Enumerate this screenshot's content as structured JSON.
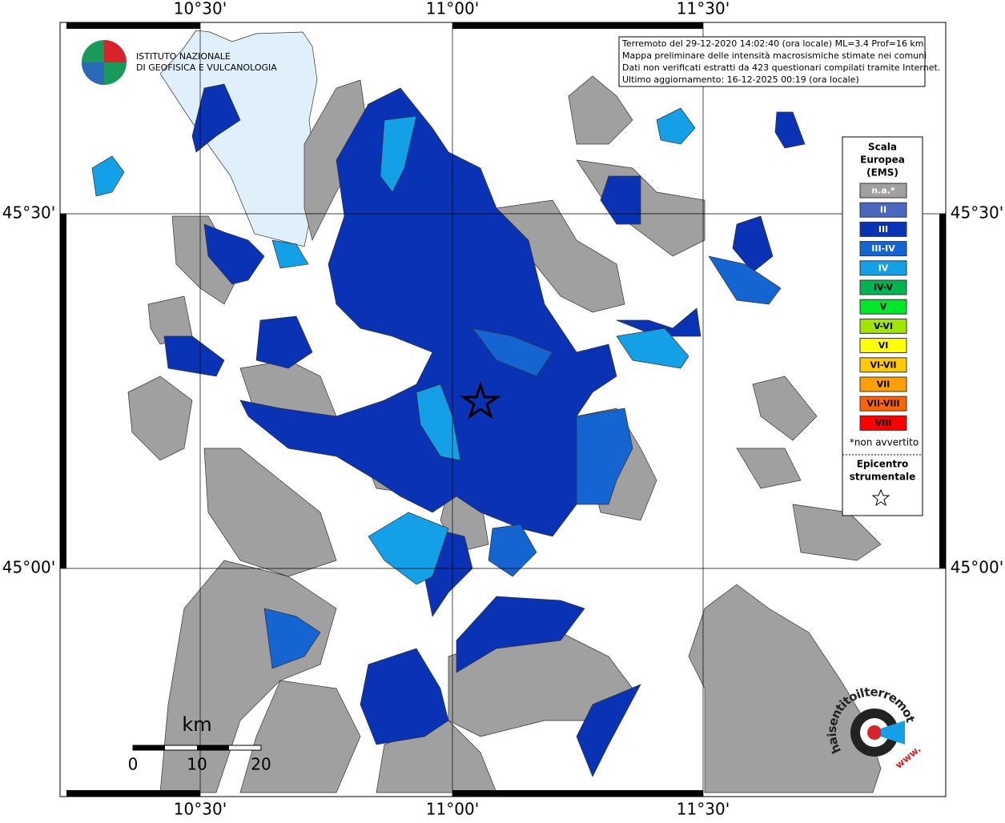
{
  "axes": {
    "top": [
      "10°30'",
      "11°00'",
      "11°30'"
    ],
    "bottom": [
      "10°30'",
      "11°00'",
      "11°30'"
    ],
    "left": [
      "45°30'",
      "45°00'"
    ],
    "right": [
      "45°30'",
      "45°00'"
    ]
  },
  "logo": {
    "line1": "ISTITUTO NAZIONALE",
    "line2": "DI GEOFISICA E VULCANOLOGIA"
  },
  "info": [
    "Terremoto del 29-12-2020 14:02:40 (ora locale) ML=3.4 Prof=16 km",
    "Mappa preliminare delle intensità macrosismiche stimate nei comuni",
    "Dati non verificati estratti da 423 questionari compilati tramite Internet.",
    "Ultimo aggiornamento: 16-12-2025 00:19 (ora locale)"
  ],
  "legend": {
    "title": [
      "Scala",
      "Europea",
      "(EMS)"
    ],
    "items": [
      {
        "label": "n.a.*",
        "color": "#a0a0a0"
      },
      {
        "label": "II",
        "color": "#4a68c0"
      },
      {
        "label": "III",
        "color": "#0a32b4"
      },
      {
        "label": "III-IV",
        "color": "#1464d2"
      },
      {
        "label": "IV",
        "color": "#14a0e6"
      },
      {
        "label": "IV-V",
        "color": "#00b450"
      },
      {
        "label": "V",
        "color": "#00e628"
      },
      {
        "label": "V-VI",
        "color": "#a0e600"
      },
      {
        "label": "VI",
        "color": "#ffff00"
      },
      {
        "label": "VI-VII",
        "color": "#ffc800"
      },
      {
        "label": "VII",
        "color": "#ffa000"
      },
      {
        "label": "VII-VIII",
        "color": "#ff6400"
      },
      {
        "label": "VIII",
        "color": "#ff0000"
      }
    ],
    "note": "*non avvertito",
    "epicenter": [
      "Epicentro",
      "strumentale"
    ]
  },
  "scale": {
    "unit": "km",
    "labels": [
      0,
      10,
      20
    ]
  },
  "badge": {
    "text": "haisentitoilterremoto.it",
    "prefix": "www."
  }
}
